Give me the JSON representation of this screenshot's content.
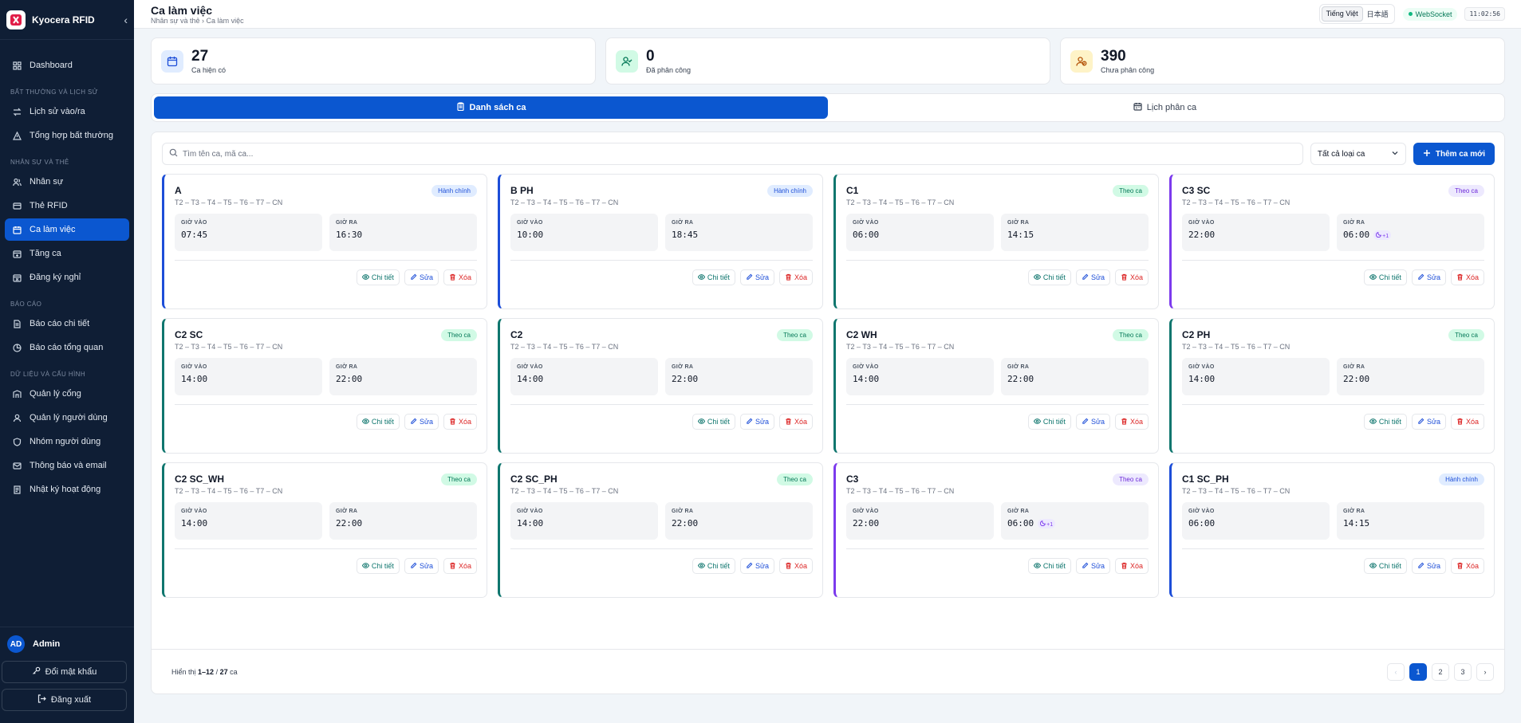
{
  "app": {
    "name": "Kyocera RFID"
  },
  "sidebar": {
    "items": [
      {
        "label": "Dashboard"
      },
      {
        "section": "BẤT THƯỜNG VÀ LỊCH SỬ"
      },
      {
        "label": "Lịch sử vào/ra"
      },
      {
        "label": "Tổng hợp bất thường"
      },
      {
        "section": "NHÂN SỰ VÀ THẺ"
      },
      {
        "label": "Nhân sự"
      },
      {
        "label": "Thẻ RFID"
      },
      {
        "label": "Ca làm việc"
      },
      {
        "label": "Tăng ca"
      },
      {
        "label": "Đăng ký nghỉ"
      },
      {
        "section": "BÁO CÁO"
      },
      {
        "label": "Báo cáo chi tiết"
      },
      {
        "label": "Báo cáo tổng quan"
      },
      {
        "section": "DỮ LIỆU VÀ CẤU HÌNH"
      },
      {
        "label": "Quản lý cổng"
      },
      {
        "label": "Quản lý người dùng"
      },
      {
        "label": "Nhóm người dùng"
      },
      {
        "label": "Thông báo và email"
      },
      {
        "label": "Nhật ký hoạt động"
      }
    ],
    "user": {
      "initials": "AD",
      "name": "Admin"
    },
    "change_password": "Đổi mật khẩu",
    "logout": "Đăng xuất"
  },
  "header": {
    "title": "Ca làm việc",
    "breadcrumb": "Nhân sự và thẻ › Ca làm việc",
    "lang_vi": "Tiếng Việt",
    "lang_ja": "日本語",
    "ws": "WebSocket",
    "clock": "11:02:56"
  },
  "stats": [
    {
      "value": "27",
      "label": "Ca hiện có"
    },
    {
      "value": "0",
      "label": "Đã phân công"
    },
    {
      "value": "390",
      "label": "Chưa phân công"
    }
  ],
  "tabs": {
    "list": "Danh sách ca",
    "schedule": "Lịch phân ca"
  },
  "toolbar": {
    "search_placeholder": "Tìm tên ca, mã ca...",
    "filter": "Tất cả loại ca",
    "add": "Thêm ca mới"
  },
  "labels": {
    "in": "GIỜ VÀO",
    "out": "GIỜ RA",
    "detail": "Chi tiết",
    "edit": "Sửa",
    "delete": "Xóa"
  },
  "shifts": [
    {
      "name": "A",
      "days": "T2 – T3 – T4 – T5 – T6 – T7 – CN",
      "type": "Hành chính",
      "in": "07:45",
      "out": "16:30",
      "next_day": ""
    },
    {
      "name": "B PH",
      "days": "T2 – T3 – T4 – T5 – T6 – T7 – CN",
      "type": "Hành chính",
      "in": "10:00",
      "out": "18:45",
      "next_day": ""
    },
    {
      "name": "C1",
      "days": "T2 – T3 – T4 – T5 – T6 – T7 – CN",
      "type": "Theo ca",
      "in": "06:00",
      "out": "14:15",
      "next_day": ""
    },
    {
      "name": "C3 SC",
      "days": "T2 – T3 – T4 – T5 – T6 – T7 – CN",
      "type": "Theo ca",
      "in": "22:00",
      "out": "06:00",
      "next_day": "+1"
    },
    {
      "name": "C2 SC",
      "days": "T2 – T3 – T4 – T5 – T6 – T7 – CN",
      "type": "Theo ca",
      "in": "14:00",
      "out": "22:00",
      "next_day": ""
    },
    {
      "name": "C2",
      "days": "T2 – T3 – T4 – T5 – T6 – T7 – CN",
      "type": "Theo ca",
      "in": "14:00",
      "out": "22:00",
      "next_day": ""
    },
    {
      "name": "C2 WH",
      "days": "T2 – T3 – T4 – T5 – T6 – T7 – CN",
      "type": "Theo ca",
      "in": "14:00",
      "out": "22:00",
      "next_day": ""
    },
    {
      "name": "C2 PH",
      "days": "T2 – T3 – T4 – T5 – T6 – T7 – CN",
      "type": "Theo ca",
      "in": "14:00",
      "out": "22:00",
      "next_day": ""
    },
    {
      "name": "C2 SC_WH",
      "days": "T2 – T3 – T4 – T5 – T6 – T7 – CN",
      "type": "Theo ca",
      "in": "14:00",
      "out": "22:00",
      "next_day": ""
    },
    {
      "name": "C2 SC_PH",
      "days": "T2 – T3 – T4 – T5 – T6 – T7 – CN",
      "type": "Theo ca",
      "in": "14:00",
      "out": "22:00",
      "next_day": ""
    },
    {
      "name": "C3",
      "days": "T2 – T3 – T4 – T5 – T6 – T7 – CN",
      "type": "Theo ca",
      "in": "22:00",
      "out": "06:00",
      "next_day": "+1"
    },
    {
      "name": "C1 SC_PH",
      "days": "T2 – T3 – T4 – T5 – T6 – T7 – CN",
      "type": "Hành chính",
      "in": "06:00",
      "out": "14:15",
      "next_day": ""
    }
  ],
  "footer": {
    "prefix": "Hiển thị",
    "range": "1–12",
    "sep": "/",
    "total": "27",
    "suffix": "ca",
    "pages": [
      "1",
      "2",
      "3"
    ],
    "current": "1"
  }
}
